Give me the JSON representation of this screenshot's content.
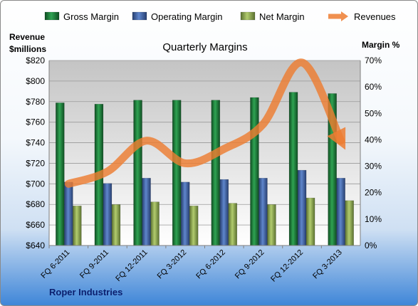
{
  "chart_data": {
    "type": "bar",
    "title": "Quarterly Margins",
    "left_axis_title_line1": "Revenue",
    "left_axis_title_line2": "$millions",
    "right_axis_title": "Margin %",
    "categories": [
      "FQ 6-2011",
      "FQ 9-2011",
      "FQ 12-2011",
      "FQ 3-2012",
      "FQ 6-2012",
      "FQ 9-2012",
      "FQ 12-2012",
      "FQ 3-2013"
    ],
    "left_axis": {
      "ylim": [
        640,
        820
      ],
      "ticks": [
        "$640",
        "$660",
        "$680",
        "$700",
        "$720",
        "$740",
        "$760",
        "$780",
        "$800",
        "$820"
      ]
    },
    "right_axis": {
      "ylim": [
        0,
        70
      ],
      "ticks": [
        "0%",
        "10%",
        "20%",
        "30%",
        "40%",
        "50%",
        "60%",
        "70%"
      ]
    },
    "series": [
      {
        "name": "Gross Margin",
        "axis": "right",
        "color": "#1e7a3c",
        "values": [
          54,
          53.5,
          55,
          55,
          55,
          56,
          58,
          57.5
        ]
      },
      {
        "name": "Operating Margin",
        "axis": "right",
        "color": "#3d63a8",
        "values": [
          24,
          23.5,
          25.5,
          24,
          25,
          25.5,
          28.5,
          25.5
        ]
      },
      {
        "name": "Net Margin",
        "axis": "right",
        "color": "#8fae4e",
        "values": [
          15,
          15.5,
          16.5,
          15,
          16,
          15.5,
          18,
          17
        ]
      },
      {
        "name": "Revenues",
        "axis": "left",
        "type": "line",
        "color": "#ed7d31",
        "values": [
          700,
          712,
          742,
          720,
          734,
          758,
          818,
          742
        ]
      }
    ],
    "grid": true,
    "legend": "top"
  },
  "footer": "Roper Industries"
}
